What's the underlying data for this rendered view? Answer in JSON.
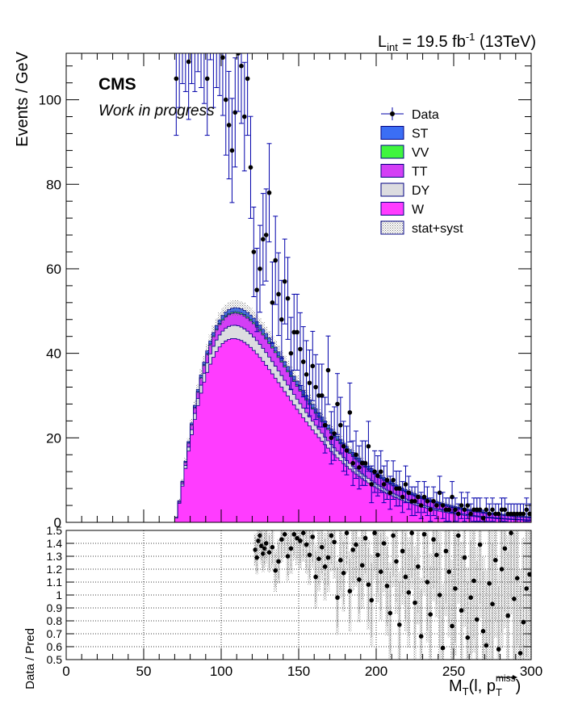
{
  "header": {
    "lumi_prefix": "L",
    "lumi_sub": "int",
    "lumi_value": " = 19.5 fb",
    "lumi_sup": "-1",
    "energy": " (13TeV)"
  },
  "labels": {
    "experiment": "CMS",
    "status": "Work in progress"
  },
  "colors": {
    "ST": "#3b6ef5",
    "VV": "#3ff53f",
    "TT": "#d33ff5",
    "DY": "#dcdce0",
    "W": "#ff3cff",
    "data": "#000000",
    "error_bar": "#0000aa",
    "band": "#9a9a9a"
  },
  "legend": {
    "placement": "top-right",
    "entries": [
      {
        "key": "data",
        "label": "Data",
        "style": "marker"
      },
      {
        "key": "ST",
        "label": "ST",
        "style": "fill"
      },
      {
        "key": "VV",
        "label": "VV",
        "style": "fill"
      },
      {
        "key": "TT",
        "label": "TT",
        "style": "fill"
      },
      {
        "key": "DY",
        "label": "DY",
        "style": "fill"
      },
      {
        "key": "W",
        "label": "W",
        "style": "fill"
      },
      {
        "key": "band",
        "label": "stat+syst",
        "style": "hatch"
      }
    ]
  },
  "chart_data": [
    {
      "type": "area",
      "stacked": true,
      "ylabel": "Events / GeV",
      "xlim": [
        0,
        300
      ],
      "ylim": [
        0,
        111
      ],
      "yticks": [
        0,
        20,
        40,
        60,
        80,
        100
      ],
      "grid": false,
      "legend": "top-right",
      "bin_width": 2,
      "x_start": 70,
      "series": [
        {
          "name": "W",
          "shape": "W"
        },
        {
          "name": "DY",
          "shape": "DY"
        },
        {
          "name": "TT",
          "shape": "TT"
        },
        {
          "name": "VV",
          "shape": "VV"
        },
        {
          "name": "ST",
          "shape": "ST"
        }
      ],
      "data": {
        "name": "Data",
        "x": [
          71,
          73,
          75,
          77,
          79,
          81,
          83,
          85,
          87,
          89,
          91,
          93,
          95,
          97,
          99,
          101,
          103,
          105,
          107,
          109,
          111,
          113,
          115,
          117,
          119,
          121,
          123,
          125,
          127,
          129,
          131,
          133,
          135,
          137,
          139,
          141,
          143,
          145,
          147,
          149,
          151,
          153,
          155,
          157,
          159,
          161,
          163,
          165,
          167,
          169,
          171,
          173,
          175,
          177,
          179,
          181,
          183,
          185,
          187,
          189,
          191,
          193,
          195,
          197,
          199,
          201,
          203,
          205,
          207,
          209,
          211,
          213,
          215,
          217,
          219,
          221,
          223,
          225,
          227,
          229,
          231,
          233,
          235,
          237,
          239,
          241,
          243,
          245,
          247,
          249,
          251,
          253,
          255,
          257,
          259,
          261,
          263,
          265,
          267,
          269,
          271,
          273,
          275,
          277,
          279,
          281,
          283,
          285,
          287,
          289,
          291,
          293,
          295,
          297,
          299
        ],
        "y": [
          105,
          112,
          118,
          116,
          109,
          118,
          116,
          121,
          117,
          113,
          105,
          124,
          112,
          117,
          115,
          110,
          100,
          94,
          88,
          97,
          111,
          108,
          96,
          105,
          84,
          64,
          55,
          60,
          67,
          68,
          78,
          52,
          62,
          54,
          48,
          57,
          53,
          40,
          45,
          45,
          41,
          38,
          35,
          33,
          37,
          32,
          30,
          30,
          23,
          36,
          20,
          21,
          28,
          23,
          18,
          17,
          26,
          14,
          16,
          13,
          14,
          14,
          18,
          9,
          12,
          11,
          12,
          9,
          10,
          7,
          10,
          8,
          8,
          6,
          9,
          7,
          5,
          5,
          6,
          4,
          6,
          5,
          3,
          5,
          4,
          7,
          4,
          3,
          3,
          6,
          3,
          2,
          4,
          3,
          4,
          2,
          3,
          3,
          3,
          1,
          3,
          2,
          3,
          2,
          2,
          3,
          3,
          2,
          2,
          2,
          2,
          2,
          2,
          3,
          2
        ]
      }
    },
    {
      "type": "scatter",
      "ylabel": "Data / Pred",
      "xlabel": "M_T(l, p_T^miss)",
      "xlim": [
        0,
        300
      ],
      "ylim": [
        0.5,
        1.5
      ],
      "xticks": [
        0,
        50,
        100,
        150,
        200,
        250,
        300
      ],
      "yticks": [
        0.5,
        0.6,
        0.7,
        0.8,
        0.9,
        1,
        1.1,
        1.2,
        1.3,
        1.4,
        1.5
      ],
      "grid": true,
      "points": {
        "x": [
          122,
          123,
          124,
          125,
          126,
          127,
          128,
          129,
          131,
          133,
          135,
          137,
          139,
          141,
          143,
          145,
          147,
          149,
          151,
          153,
          155,
          157,
          159,
          161,
          163,
          165,
          167,
          169,
          171,
          173,
          175,
          177,
          179,
          181,
          183,
          185,
          187,
          189,
          191,
          193,
          195,
          197,
          199,
          201,
          203,
          205,
          207,
          209,
          211,
          213,
          215,
          217,
          219,
          221,
          223,
          225,
          227,
          229,
          231,
          233,
          235,
          237,
          239,
          241,
          243,
          245,
          247,
          249,
          251,
          253,
          255,
          257,
          259,
          261,
          263,
          265,
          267,
          269,
          271,
          273,
          275,
          277,
          279,
          281,
          283,
          285,
          287,
          289,
          291,
          293,
          295,
          297,
          299
        ],
        "y": [
          1.35,
          1.29,
          1.42,
          1.46,
          1.38,
          1.32,
          1.36,
          1.4,
          1.33,
          1.37,
          1.19,
          1.26,
          1.43,
          1.47,
          1.3,
          1.36,
          1.47,
          1.44,
          1.42,
          1.48,
          1.39,
          1.31,
          1.45,
          1.14,
          1.28,
          1.37,
          1.22,
          1.29,
          1.46,
          1.41,
          0.98,
          1.27,
          1.17,
          1.48,
          1.03,
          1.35,
          1.39,
          1.12,
          1.23,
          1.44,
          1.08,
          0.96,
          1.48,
          1.31,
          1.18,
          1.4,
          1.07,
          0.86,
          1.46,
          1.26,
          0.77,
          1.34,
          1.14,
          1.02,
          1.48,
          0.94,
          1.22,
          0.68,
          1.47,
          1.1,
          0.85,
          1.43,
          1.31,
          1.0,
          0.59,
          1.34,
          1.18,
          0.76,
          1.05,
          1.46,
          0.88,
          1.29,
          0.67,
          0.98,
          1.11,
          0.81,
          1.39,
          0.72,
          0.61,
          1.09,
          0.93,
          1.27,
          0.58,
          1.2,
          1.36,
          0.84,
          1.48,
          0.97,
          1.13,
          0.55,
          0.79,
          1.05,
          1.16
        ]
      }
    }
  ],
  "axis_title_x": {
    "main": "M",
    "sub": "T",
    "rest": "(l, p",
    "vec_sup": "miss",
    "vec_sub": "T",
    "close": ")"
  }
}
